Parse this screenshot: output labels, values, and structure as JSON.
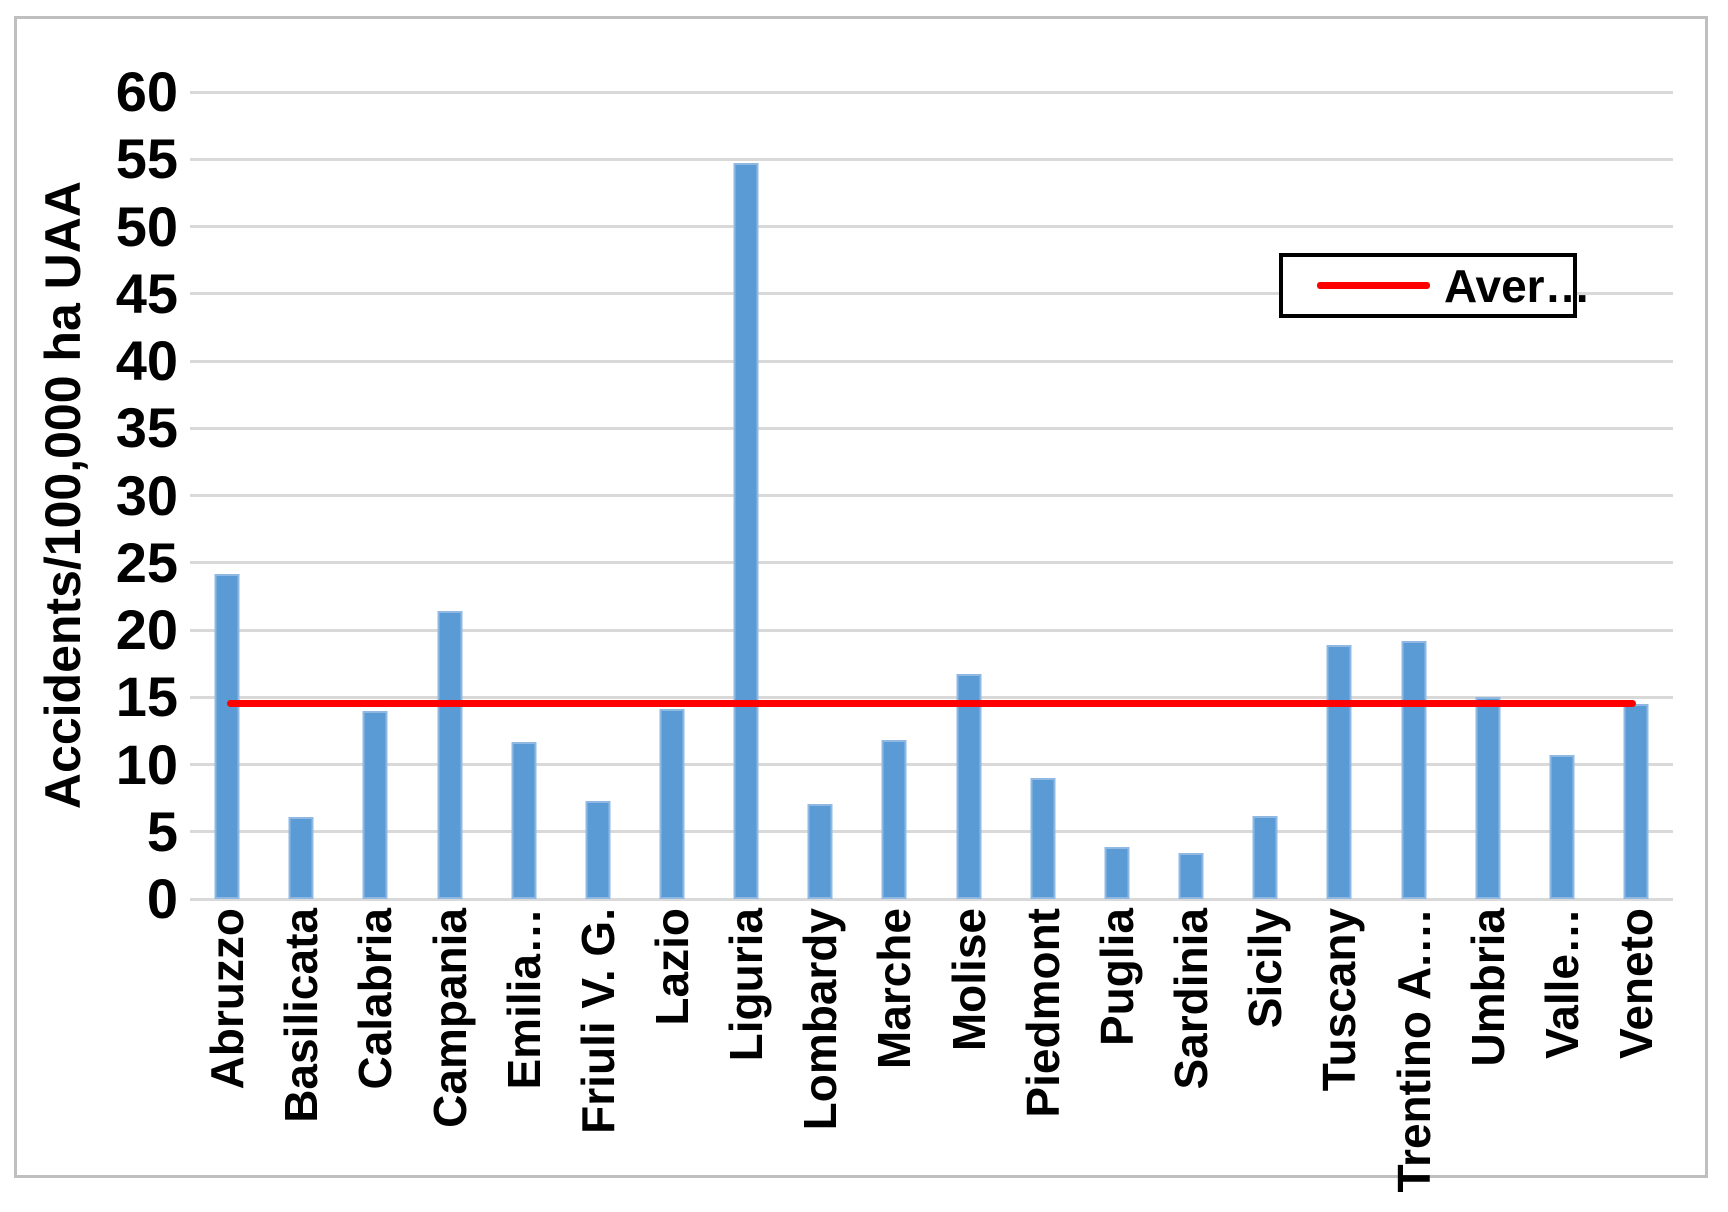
{
  "chart_data": {
    "type": "bar",
    "title": "",
    "xlabel": "",
    "ylabel": "Accidents/100,000 ha UAA",
    "ylim": [
      0,
      60
    ],
    "yticks": [
      0,
      5,
      10,
      15,
      20,
      25,
      30,
      35,
      40,
      45,
      50,
      55,
      60
    ],
    "grid": "horizontal",
    "categories": [
      "Abruzzo",
      "Basilicata",
      "Calabria",
      "Campania",
      "Emilia…",
      "Friuli V. G.",
      "Lazio",
      "Liguria",
      "Lombardy",
      "Marche",
      "Molise",
      "Piedmont",
      "Puglia",
      "Sardinia",
      "Sicily",
      "Tuscany",
      "Trentino A.…",
      "Umbria",
      "Valle…",
      "Veneto"
    ],
    "series": [
      {
        "name": "Accidents/100,000 ha UAA",
        "type": "bar",
        "color": "#5B9BD5",
        "values": [
          24.2,
          6.1,
          14.0,
          21.4,
          11.7,
          7.3,
          14.1,
          54.7,
          7.1,
          11.8,
          16.7,
          9.0,
          3.9,
          3.4,
          6.2,
          18.9,
          19.2,
          15.0,
          10.7,
          14.5
        ]
      }
    ],
    "average_line": {
      "label": "Aver…",
      "value": 14.5,
      "color": "#FF0000"
    },
    "legend": {
      "position": "top-right",
      "entries": [
        "Aver…"
      ]
    },
    "colors": {
      "bar_fill": "#5B9BD5",
      "bar_edge": "#8FB8E2",
      "gridline": "#D9D9D9",
      "frame_border": "#BFBFBF",
      "average_line": "#FF0000",
      "text": "#000000",
      "background": "#FFFFFF"
    }
  }
}
